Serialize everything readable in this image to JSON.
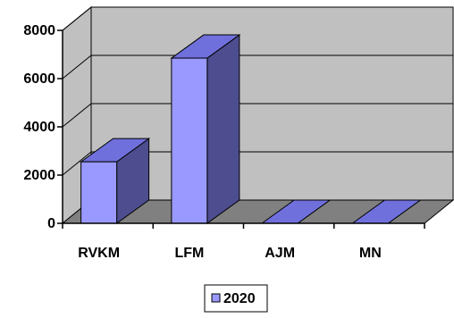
{
  "chart_data": {
    "type": "bar",
    "title": "",
    "xlabel": "",
    "ylabel": "",
    "categories": [
      "RVKM",
      "LFM",
      "AJM",
      "MN"
    ],
    "series": [
      {
        "name": "2020",
        "values": [
          2550,
          6850,
          0,
          0
        ]
      }
    ],
    "ylim": [
      0,
      8000
    ],
    "yticks": [
      0,
      2000,
      4000,
      6000,
      8000
    ],
    "ytick_labels": [
      "0",
      "2000",
      "4000",
      "6000",
      "8000"
    ],
    "grid": true,
    "legend_position": "bottom",
    "style": "3d-column",
    "colors": {
      "bar_front": "#9999ff",
      "bar_side": "#4d4d8f",
      "bar_top": "#7070dd",
      "wall": "#c0c0c0",
      "floor": "#808080"
    }
  }
}
